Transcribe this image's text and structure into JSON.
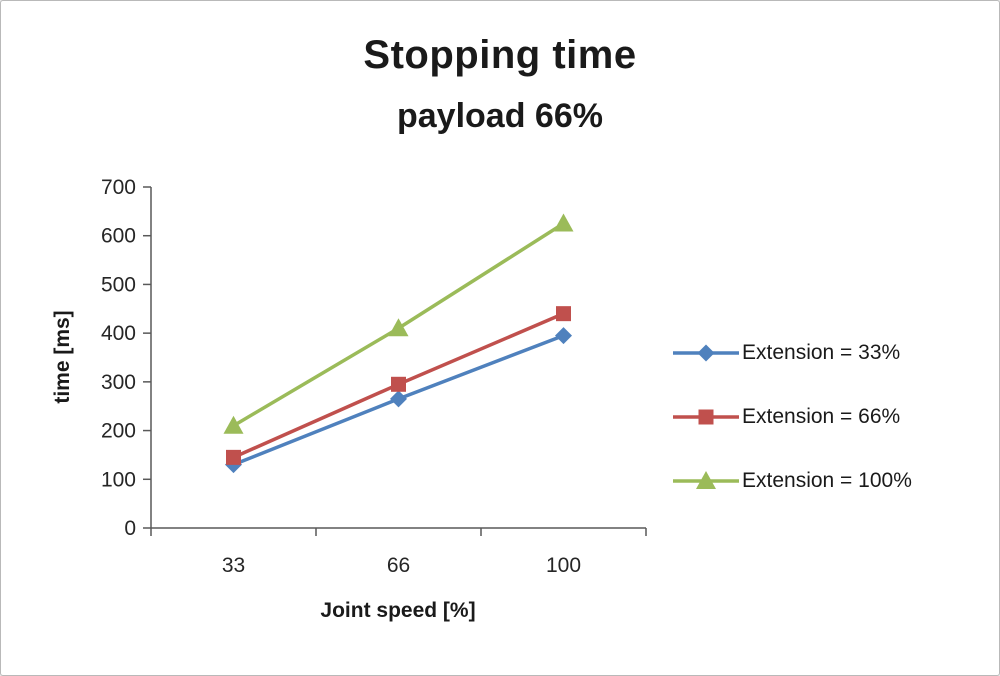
{
  "chart_data": {
    "type": "line",
    "title": "Stopping time",
    "subtitle": "payload 66%",
    "xlabel": "Joint speed [%]",
    "ylabel": "time [ms]",
    "categories": [
      "33",
      "66",
      "100"
    ],
    "yticks": [
      0,
      100,
      200,
      300,
      400,
      500,
      600,
      700
    ],
    "ylim": [
      0,
      700
    ],
    "grid": false,
    "legend_position": "right",
    "series": [
      {
        "name": "Extension = 33%",
        "marker": "diamond",
        "color": "#4F81BD",
        "values": [
          130,
          265,
          395
        ]
      },
      {
        "name": "Extension = 66%",
        "marker": "square",
        "color": "#C0504D",
        "values": [
          145,
          295,
          440
        ]
      },
      {
        "name": "Extension = 100%",
        "marker": "triangle",
        "color": "#9BBB59",
        "values": [
          210,
          410,
          625
        ]
      }
    ]
  }
}
